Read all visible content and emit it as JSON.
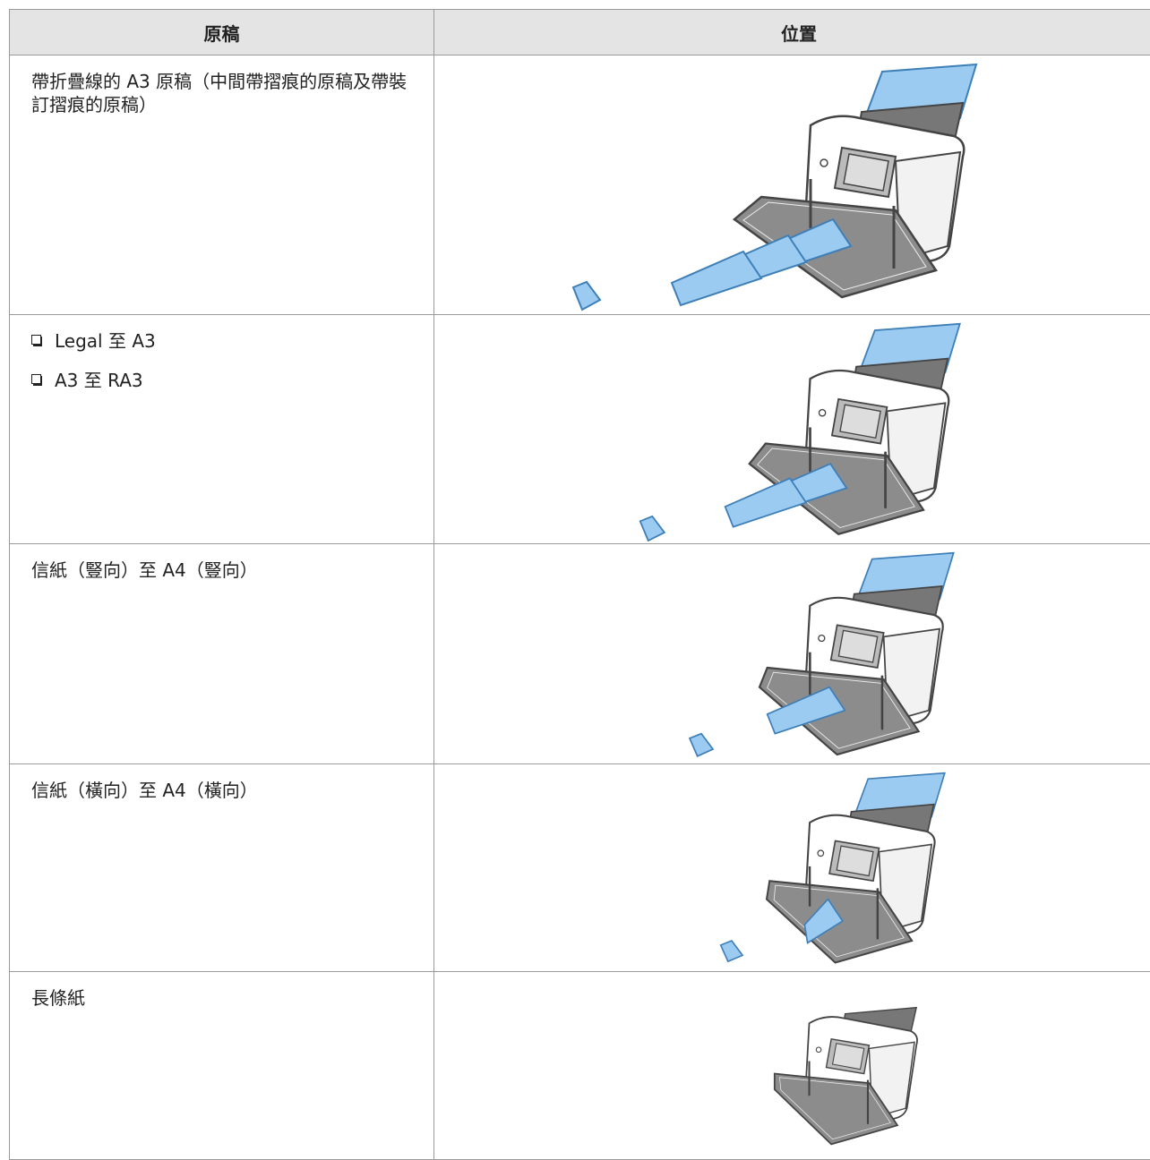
{
  "table": {
    "header": [
      "原稿",
      "位置"
    ],
    "rows": [
      {
        "text": "帶折疊線的 A3 原稿（中間帶摺痕的原稿及帶裝訂摺痕的原稿）"
      },
      {
        "items": [
          "Legal 至 A3",
          "A3 至 RA3"
        ]
      },
      {
        "text": "信紙（豎向）至 A4（豎向）"
      },
      {
        "text": "信紙（橫向）至 A4（橫向）"
      },
      {
        "text": "長條紙"
      }
    ]
  }
}
